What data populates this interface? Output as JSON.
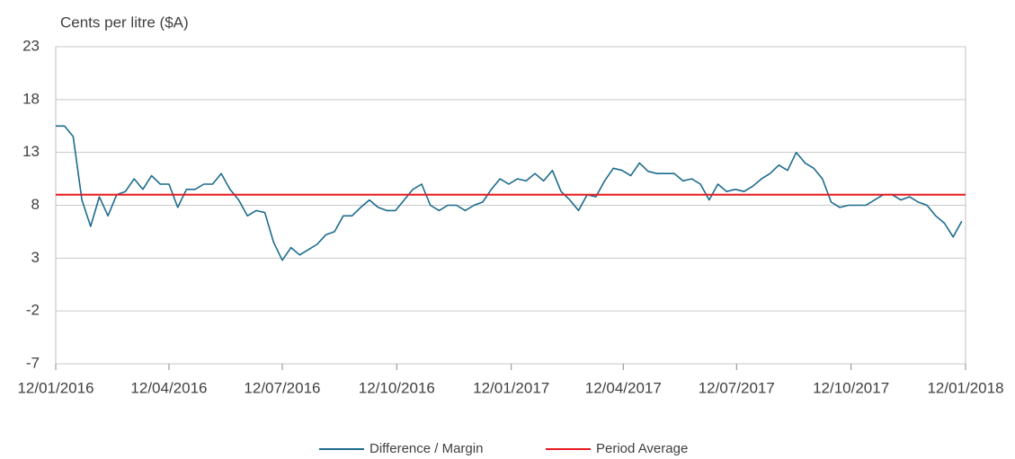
{
  "chart_data": {
    "type": "line",
    "y_axis_label": "Cents per litre ($A)",
    "x": [
      "2016-01-12",
      "2016-01-19",
      "2016-01-26",
      "2016-02-02",
      "2016-02-09",
      "2016-02-16",
      "2016-02-23",
      "2016-03-01",
      "2016-03-08",
      "2016-03-15",
      "2016-03-22",
      "2016-03-29",
      "2016-04-05",
      "2016-04-12",
      "2016-04-19",
      "2016-04-26",
      "2016-05-03",
      "2016-05-10",
      "2016-05-17",
      "2016-05-24",
      "2016-05-31",
      "2016-06-07",
      "2016-06-14",
      "2016-06-21",
      "2016-06-28",
      "2016-07-05",
      "2016-07-12",
      "2016-07-19",
      "2016-07-26",
      "2016-08-02",
      "2016-08-09",
      "2016-08-16",
      "2016-08-23",
      "2016-08-30",
      "2016-09-06",
      "2016-09-13",
      "2016-09-20",
      "2016-09-27",
      "2016-10-04",
      "2016-10-11",
      "2016-10-18",
      "2016-10-25",
      "2016-11-01",
      "2016-11-08",
      "2016-11-15",
      "2016-11-22",
      "2016-11-29",
      "2016-12-06",
      "2016-12-13",
      "2016-12-20",
      "2016-12-27",
      "2017-01-03",
      "2017-01-10",
      "2017-01-17",
      "2017-01-24",
      "2017-01-31",
      "2017-02-07",
      "2017-02-14",
      "2017-02-21",
      "2017-02-28",
      "2017-03-07",
      "2017-03-14",
      "2017-03-21",
      "2017-03-28",
      "2017-04-04",
      "2017-04-11",
      "2017-04-18",
      "2017-04-25",
      "2017-05-02",
      "2017-05-09",
      "2017-05-16",
      "2017-05-23",
      "2017-05-30",
      "2017-06-06",
      "2017-06-13",
      "2017-06-20",
      "2017-06-27",
      "2017-07-04",
      "2017-07-11",
      "2017-07-18",
      "2017-07-25",
      "2017-08-01",
      "2017-08-08",
      "2017-08-15",
      "2017-08-22",
      "2017-08-29",
      "2017-09-05",
      "2017-09-12",
      "2017-09-19",
      "2017-09-26",
      "2017-10-03",
      "2017-10-10",
      "2017-10-17",
      "2017-10-24",
      "2017-10-31",
      "2017-11-07",
      "2017-11-14",
      "2017-11-21",
      "2017-11-28",
      "2017-12-05",
      "2017-12-12",
      "2017-12-19",
      "2017-12-26",
      "2018-01-02",
      "2018-01-09"
    ],
    "series": [
      {
        "name": "Difference / Margin",
        "color": "#1b6b8c",
        "values": [
          15.5,
          15.5,
          14.5,
          8.5,
          6,
          8.8,
          7,
          9,
          9.3,
          10.5,
          9.5,
          10.8,
          10,
          10,
          7.8,
          9.5,
          9.5,
          10,
          10,
          11,
          9.5,
          8.5,
          7,
          7.5,
          7.3,
          4.5,
          2.8,
          4,
          3.3,
          3.8,
          4.3,
          5.2,
          5.5,
          7,
          7,
          7.8,
          8.5,
          7.8,
          7.5,
          7.5,
          8.5,
          9.5,
          10,
          8,
          7.5,
          8,
          8,
          7.5,
          8,
          8.3,
          9.5,
          10.5,
          10,
          10.5,
          10.3,
          11,
          10.3,
          11.3,
          9.3,
          8.5,
          7.5,
          9,
          8.8,
          10.3,
          11.5,
          11.3,
          10.8,
          12,
          11.2,
          11,
          11,
          11,
          10.3,
          10.5,
          10,
          8.5,
          10,
          9.3,
          9.5,
          9.3,
          9.8,
          10.5,
          11,
          11.8,
          11.3,
          13,
          12,
          11.5,
          10.5,
          8.3,
          7.8,
          8,
          8,
          8,
          8.5,
          9,
          9,
          8.5,
          8.8,
          8.3,
          8,
          7,
          6.3,
          5,
          6.5
        ]
      }
    ],
    "average": {
      "name": "Period Average",
      "color": "#e8191e",
      "value": 9
    },
    "xlim": [
      "2016-01-12",
      "2018-01-12"
    ],
    "xticks": [
      {
        "value": "2016-01-12",
        "label": "12/01/2016"
      },
      {
        "value": "2016-04-12",
        "label": "12/04/2016"
      },
      {
        "value": "2016-07-12",
        "label": "12/07/2016"
      },
      {
        "value": "2016-10-12",
        "label": "12/10/2016"
      },
      {
        "value": "2017-01-12",
        "label": "12/01/2017"
      },
      {
        "value": "2017-04-12",
        "label": "12/04/2017"
      },
      {
        "value": "2017-07-12",
        "label": "12/07/2017"
      },
      {
        "value": "2017-10-12",
        "label": "12/10/2017"
      },
      {
        "value": "2018-01-12",
        "label": "12/01/2018"
      }
    ],
    "ylim": [
      -7,
      23
    ],
    "yticks": [
      23,
      18,
      13,
      8,
      3,
      -2,
      -7
    ],
    "grid": true
  }
}
